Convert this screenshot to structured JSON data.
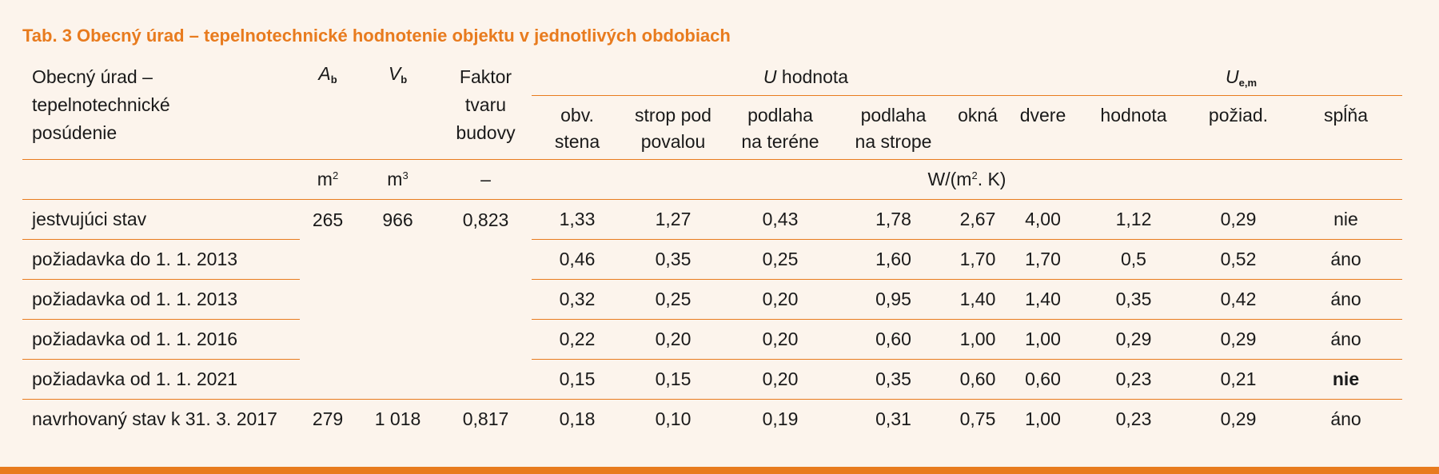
{
  "caption": "Tab. 3 Obecný úrad – tepelnotechnické hodnotenie objektu v jednotlivých obdobiach",
  "header": {
    "first_col_line1": "Obecný úrad –",
    "first_col_line2": "tepelnotechnické",
    "first_col_line3": "posúdenie",
    "ab_letter": "A",
    "ab_sub": "b",
    "vb_letter": "V",
    "vb_sub": "b",
    "faktor_line1": "Faktor",
    "faktor_line2": "tvaru",
    "faktor_line3": "budovy",
    "u_group_letter": "U",
    "u_group_rest": " hodnota",
    "uem_letter": "U",
    "uem_sub": "e,m",
    "sub_cols": [
      {
        "l1": "obv.",
        "l2": "stena"
      },
      {
        "l1": "strop pod",
        "l2": "povalou"
      },
      {
        "l1": "podlaha",
        "l2": "na teréne"
      },
      {
        "l1": "podlaha",
        "l2": "na strope"
      },
      {
        "l1": "okná",
        "l2": ""
      },
      {
        "l1": "dvere",
        "l2": ""
      },
      {
        "l1": "hodnota",
        "l2": ""
      },
      {
        "l1": "požiad.",
        "l2": ""
      },
      {
        "l1": "spĺňa",
        "l2": ""
      }
    ],
    "units": {
      "ab": "m",
      "ab_sup": "2",
      "vb": "m",
      "vb_sup": "3",
      "faktor": "–",
      "u_pre": "W/(m",
      "u_sup": "2",
      "u_post": ". K)"
    }
  },
  "rows": [
    {
      "label": "jestvujúci stav",
      "ab": "265",
      "vb": "966",
      "faktor": "0,823",
      "vals": [
        "1,33",
        "1,27",
        "0,43",
        "1,78",
        "2,67",
        "4,00",
        "1,12",
        "0,29",
        "nie"
      ]
    },
    {
      "label": "požiadavka do 1. 1. 2013",
      "vals": [
        "0,46",
        "0,35",
        "0,25",
        "1,60",
        "1,70",
        "1,70",
        "0,5",
        "0,52",
        "áno"
      ]
    },
    {
      "label": "požiadavka od 1. 1. 2013",
      "vals": [
        "0,32",
        "0,25",
        "0,20",
        "0,95",
        "1,40",
        "1,40",
        "0,35",
        "0,42",
        "áno"
      ]
    },
    {
      "label": "požiadavka od 1. 1. 2016",
      "vals": [
        "0,22",
        "0,20",
        "0,20",
        "0,60",
        "1,00",
        "1,00",
        "0,29",
        "0,29",
        "áno"
      ]
    },
    {
      "label": "požiadavka od 1. 1. 2021",
      "vals": [
        "0,15",
        "0,15",
        "0,20",
        "0,35",
        "0,60",
        "0,60",
        "0,23",
        "0,21",
        "nie"
      ]
    },
    {
      "label": "navrhovaný stav k 31. 3. 2017",
      "ab": "279",
      "vb": "1 018",
      "faktor": "0,817",
      "vals": [
        "0,18",
        "0,10",
        "0,19",
        "0,31",
        "0,75",
        "1,00",
        "0,23",
        "0,29",
        "áno"
      ]
    }
  ],
  "colors": {
    "accent": "#e87b1e",
    "background": "#fcf4ec"
  }
}
